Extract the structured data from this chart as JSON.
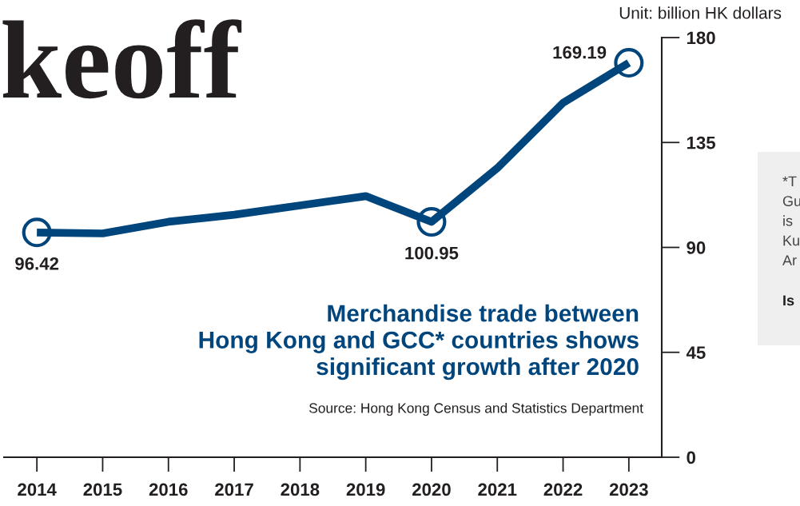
{
  "chart_data": {
    "type": "line",
    "title": "Merchandise trade between\nHong Kong and GCC* countries shows\nsignificant growth after 2020",
    "ylabel": "Unit: billion HK dollars",
    "categories": [
      "2014",
      "2015",
      "2016",
      "2017",
      "2018",
      "2019",
      "2020",
      "2021",
      "2022",
      "2023"
    ],
    "series": [
      {
        "color": "#00457c",
        "values": [
          96.42,
          96,
          101,
          104,
          108,
          112,
          100.95,
          124,
          152,
          169.19
        ],
        "value_labels": [
          "96.42",
          null,
          null,
          null,
          null,
          null,
          "100.95",
          null,
          null,
          "169.19"
        ]
      }
    ],
    "ylim": [
      0,
      180
    ],
    "yticks": [
      0,
      45,
      90,
      135,
      180
    ],
    "grid": false,
    "legend": false,
    "annotations": [
      "Source: Hong Kong Census and Statistics Department",
      "keoff",
      "*T\nGu\nis\nKu\nAr",
      "Is"
    ]
  }
}
